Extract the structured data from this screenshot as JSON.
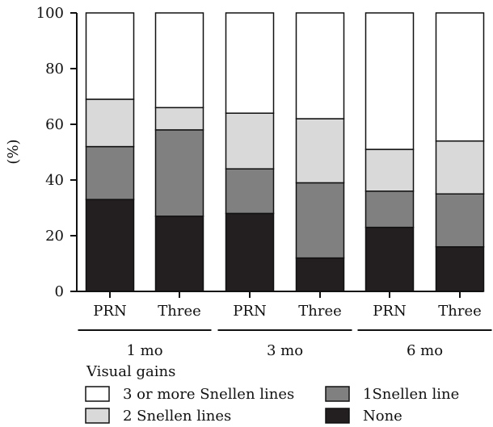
{
  "chart_data": {
    "type": "bar",
    "stacked": true,
    "categories": [
      "PRN",
      "Three",
      "PRN",
      "Three",
      "PRN",
      "Three"
    ],
    "groups": [
      {
        "label": "1 mo",
        "categories": [
          0,
          1
        ]
      },
      {
        "label": "3 mo",
        "categories": [
          2,
          3
        ]
      },
      {
        "label": "6 mo",
        "categories": [
          4,
          5
        ]
      }
    ],
    "series": [
      {
        "name": "None",
        "color": "#231f20",
        "values": [
          33,
          27,
          28,
          12,
          23,
          16
        ]
      },
      {
        "name": "1Snellen line",
        "color": "#808080",
        "values": [
          19,
          31,
          16,
          27,
          13,
          19
        ]
      },
      {
        "name": "2 Snellen lines",
        "color": "#d9d9d9",
        "values": [
          17,
          8,
          20,
          23,
          15,
          19
        ]
      },
      {
        "name": "3 or more Snellen lines",
        "color": "#ffffff",
        "values": [
          31,
          34,
          36,
          38,
          49,
          46
        ]
      }
    ],
    "ylabel": "(%)",
    "ylim": [
      0,
      100
    ],
    "yticks": [
      0,
      20,
      40,
      60,
      80,
      100
    ],
    "legend_title": "Visual gains",
    "legend_order": [
      "3 or more Snellen lines",
      "1Snellen line",
      "2 Snellen lines",
      "None"
    ]
  }
}
